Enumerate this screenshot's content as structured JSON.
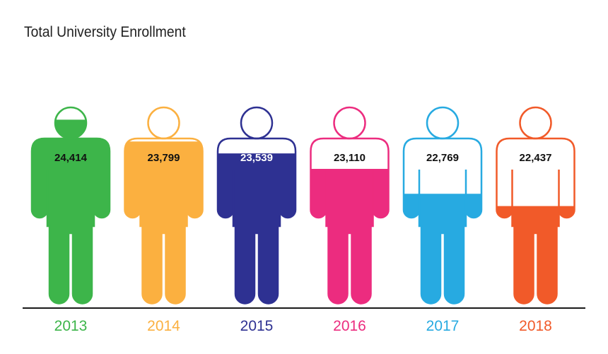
{
  "title": "Total University Enrollment",
  "chart_data": {
    "type": "bar",
    "title": "Total University Enrollment",
    "categories": [
      "2013",
      "2014",
      "2015",
      "2016",
      "2017",
      "2018"
    ],
    "values": [
      24414,
      23799,
      23539,
      23110,
      22769,
      22437
    ],
    "value_labels": [
      "24,414",
      "23,799",
      "23,539",
      "23,110",
      "22,769",
      "22,437"
    ],
    "colors": [
      "#3db54a",
      "#fbb040",
      "#2e3192",
      "#ec2c7f",
      "#27aae1",
      "#f15a29"
    ],
    "fill_fraction": [
      0.937,
      0.825,
      0.764,
      0.685,
      0.557,
      0.494
    ],
    "ylim": [
      21000,
      24600
    ],
    "xlabel": "",
    "ylabel": "",
    "grid": false
  }
}
